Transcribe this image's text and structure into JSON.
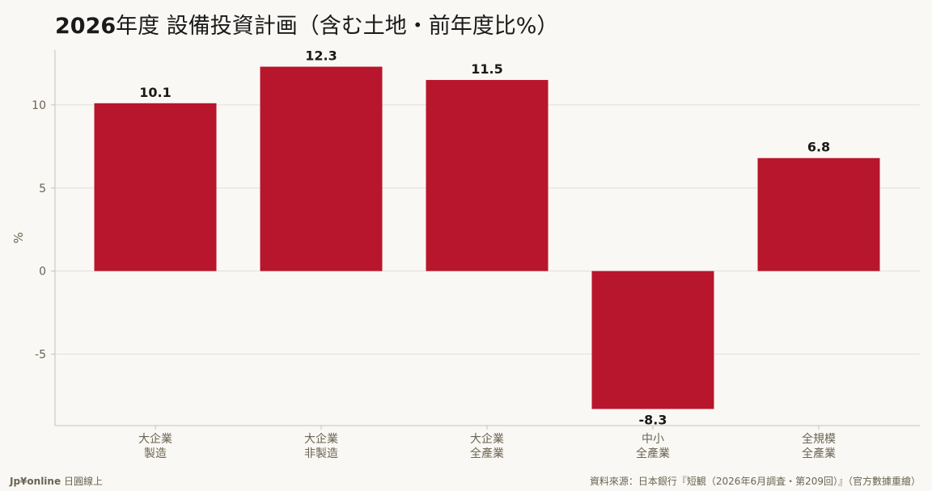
{
  "title_bold": "2026",
  "title_rest": "年度 設備投資計画（含む土地・前年度比%）",
  "footer": {
    "brand": "Jp¥online",
    "brand_suffix": "日圓線上",
    "source": "資料來源：日本銀行『短観（2026年6月調査・第209回）』（官方數據重繪）"
  },
  "colors": {
    "bar": "#b8162c",
    "grid": "#e3ded6",
    "axis": "#c8c2b6",
    "tick_text": "#6b6454",
    "value_text": "#1a1a1a",
    "background": "#faf8f4"
  },
  "chart_data": {
    "type": "bar",
    "title": "2026年度 設備投資計画（含む土地・前年度比%）",
    "categories": [
      [
        "大企業",
        "製造"
      ],
      [
        "大企業",
        "非製造"
      ],
      [
        "大企業",
        "全產業"
      ],
      [
        "中小",
        "全產業"
      ],
      [
        "全規模",
        "全產業"
      ]
    ],
    "values": [
      10.1,
      12.3,
      11.5,
      -8.3,
      6.8
    ],
    "value_labels": [
      "10.1",
      "12.3",
      "11.5",
      "-8.3",
      "6.8"
    ],
    "ylabel": "%",
    "ylim": [
      -9.3,
      13.3
    ],
    "yticks": [
      -5,
      0,
      5,
      10
    ],
    "grid": true,
    "legend": "none"
  }
}
